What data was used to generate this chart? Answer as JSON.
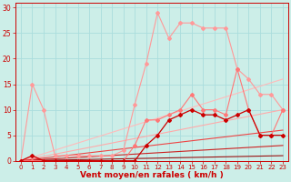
{
  "background_color": "#cceee8",
  "grid_color": "#aadddd",
  "xlabel": "Vent moyen/en rafales ( km/h )",
  "xlabel_color": "#cc0000",
  "tick_color": "#cc0000",
  "xlim": [
    -0.5,
    23.5
  ],
  "ylim": [
    0,
    31
  ],
  "xticks": [
    0,
    1,
    2,
    3,
    4,
    5,
    6,
    7,
    8,
    9,
    10,
    11,
    12,
    13,
    14,
    15,
    16,
    17,
    18,
    19,
    20,
    21,
    22,
    23
  ],
  "yticks": [
    0,
    5,
    10,
    15,
    20,
    25,
    30
  ],
  "lines": [
    {
      "x": [
        0,
        1,
        2,
        3,
        4,
        5,
        6,
        7,
        8,
        9,
        10,
        11,
        12,
        13,
        14,
        15,
        16,
        17,
        18,
        19,
        20,
        21,
        22,
        23
      ],
      "y": [
        0,
        15,
        10,
        1,
        1,
        1,
        1,
        1,
        1,
        2,
        11,
        19,
        29,
        24,
        27,
        27,
        26,
        26,
        26,
        18,
        16,
        13,
        13,
        10
      ],
      "color": "#ff9999",
      "lw": 0.8,
      "marker": "D",
      "ms": 2.0
    },
    {
      "x": [
        0,
        1,
        2,
        3,
        4,
        5,
        6,
        7,
        8,
        9,
        10,
        11,
        12,
        13,
        14,
        15,
        16,
        17,
        18,
        19,
        20,
        21,
        22,
        23
      ],
      "y": [
        0,
        0,
        0,
        0,
        0,
        0,
        0,
        0,
        0,
        0,
        3,
        8,
        8,
        9,
        10,
        13,
        10,
        10,
        9,
        18,
        10,
        5,
        5,
        10
      ],
      "color": "#ff7777",
      "lw": 0.8,
      "marker": "D",
      "ms": 2.0
    },
    {
      "x": [
        0,
        1,
        2,
        3,
        4,
        5,
        6,
        7,
        8,
        9,
        10,
        11,
        12,
        13,
        14,
        15,
        16,
        17,
        18,
        19,
        20,
        21,
        22,
        23
      ],
      "y": [
        0,
        1,
        0,
        0,
        0,
        0,
        0,
        0,
        0,
        0,
        0,
        3,
        5,
        8,
        9,
        10,
        9,
        9,
        8,
        9,
        10,
        5,
        5,
        5
      ],
      "color": "#cc0000",
      "lw": 0.9,
      "marker": "D",
      "ms": 2.0
    },
    {
      "x": [
        0,
        23
      ],
      "y": [
        0,
        16
      ],
      "color": "#ffbbbb",
      "lw": 0.8,
      "marker": null,
      "ms": 0
    },
    {
      "x": [
        0,
        23
      ],
      "y": [
        0,
        10
      ],
      "color": "#ffaaaa",
      "lw": 0.8,
      "marker": null,
      "ms": 0
    },
    {
      "x": [
        0,
        23
      ],
      "y": [
        0,
        6
      ],
      "color": "#ee4444",
      "lw": 0.8,
      "marker": null,
      "ms": 0
    },
    {
      "x": [
        0,
        23
      ],
      "y": [
        0,
        3
      ],
      "color": "#cc2222",
      "lw": 0.8,
      "marker": null,
      "ms": 0
    },
    {
      "x": [
        0,
        23
      ],
      "y": [
        0,
        1
      ],
      "color": "#991111",
      "lw": 0.8,
      "marker": null,
      "ms": 0
    }
  ]
}
